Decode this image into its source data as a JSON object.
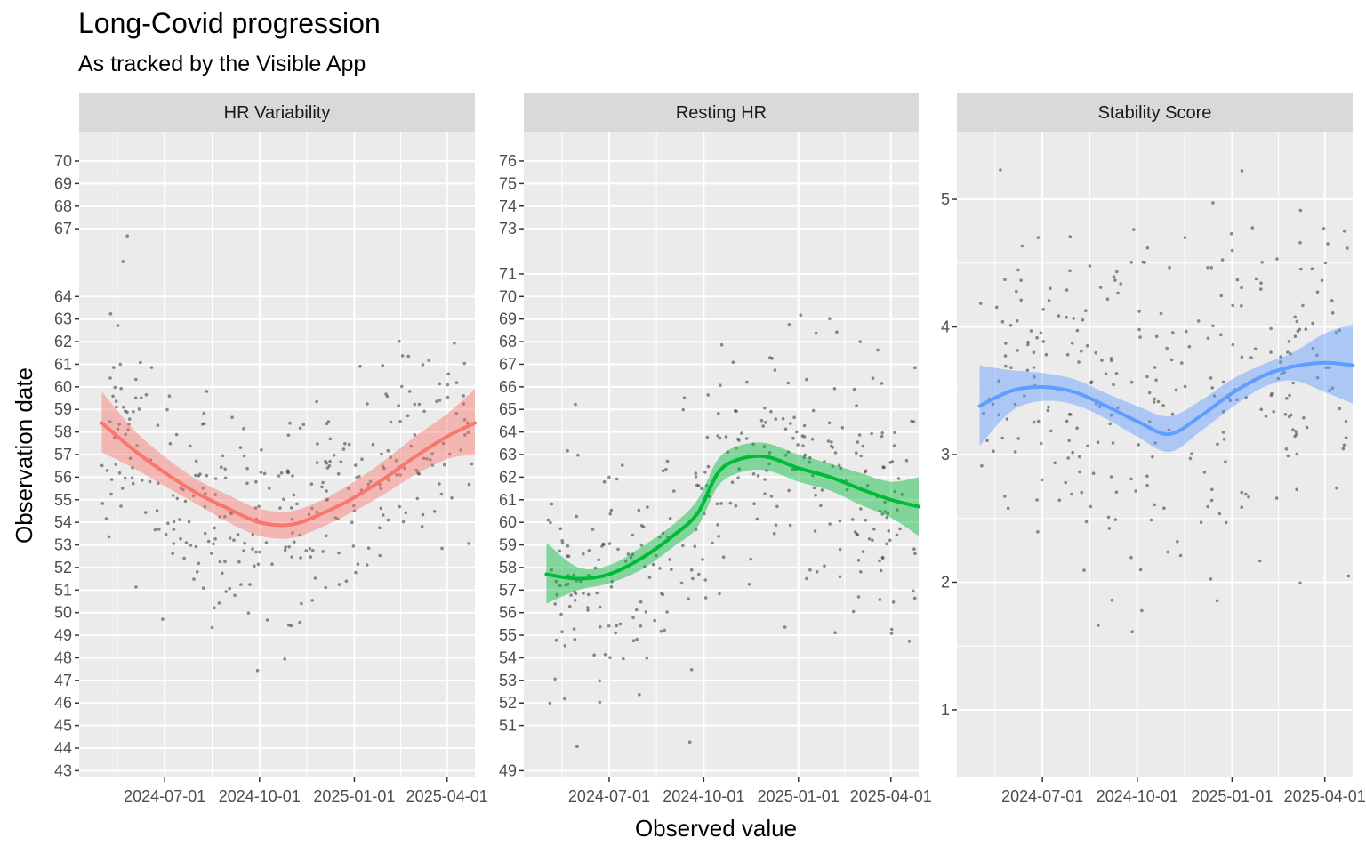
{
  "chart_data": {
    "type": "scatter",
    "title": "Long-Covid progression",
    "subtitle": "As tracked by the Visible App",
    "xlabel": "Observed value",
    "ylabel": "Observation date",
    "x_tick_labels": [
      "2024-07-01",
      "2024-10-01",
      "2025-01-01",
      "2025-04-01"
    ],
    "x_tick_dates": [
      "2024-07-01",
      "2024-10-01",
      "2025-01-01",
      "2025-04-01"
    ],
    "x_range": [
      "2024-04-09",
      "2025-04-28"
    ],
    "panels": [
      {
        "name": "HR Variability",
        "color": "#F8766D",
        "y_ticks": [
          "43",
          "44",
          "45",
          "46",
          "47",
          "48",
          "49",
          "50",
          "51",
          "52",
          "53",
          "54",
          "55",
          "56",
          "57",
          "58",
          "59",
          "60",
          "61",
          "62",
          "63",
          "64",
          "67",
          "68",
          "69",
          "70"
        ],
        "y_range": [
          42.7,
          71.3
        ],
        "smooth": {
          "x": [
            "2024-05-01",
            "2024-06-01",
            "2024-07-01",
            "2024-08-01",
            "2024-09-01",
            "2024-10-01",
            "2024-11-01",
            "2024-12-01",
            "2025-01-01",
            "2025-02-01",
            "2025-03-01",
            "2025-04-01",
            "2025-04-28"
          ],
          "y": [
            58.4,
            57.2,
            56.2,
            55.3,
            54.6,
            54.0,
            53.9,
            54.4,
            55.1,
            56.0,
            56.9,
            57.8,
            58.4
          ],
          "lower": [
            57.1,
            56.4,
            55.6,
            54.8,
            54.0,
            53.4,
            53.3,
            53.8,
            54.5,
            55.3,
            56.1,
            56.8,
            57.0
          ],
          "upper": [
            59.8,
            58.1,
            56.9,
            55.9,
            55.2,
            54.6,
            54.5,
            55.0,
            55.8,
            56.8,
            57.8,
            58.8,
            59.9
          ]
        },
        "points_seed": 11,
        "points_count": 330,
        "points_spread": 2.6
      },
      {
        "name": "Resting HR",
        "color": "#00BA38",
        "y_ticks": [
          "49",
          "51",
          "52",
          "53",
          "54",
          "55",
          "56",
          "57",
          "58",
          "59",
          "60",
          "61",
          "62",
          "63",
          "64",
          "65",
          "66",
          "67",
          "68",
          "69",
          "70",
          "71",
          "73",
          "74",
          "75",
          "76"
        ],
        "y_range": [
          48.7,
          77.3
        ],
        "smooth": {
          "x": [
            "2024-05-01",
            "2024-06-01",
            "2024-07-01",
            "2024-08-01",
            "2024-09-01",
            "2024-09-25",
            "2024-10-15",
            "2024-11-05",
            "2024-12-01",
            "2025-01-01",
            "2025-02-01",
            "2025-03-01",
            "2025-04-01",
            "2025-04-28"
          ],
          "y": [
            57.7,
            57.5,
            57.7,
            58.4,
            59.4,
            60.4,
            62.2,
            62.8,
            62.9,
            62.4,
            62.0,
            61.5,
            61.0,
            60.7
          ],
          "lower": [
            56.4,
            57.0,
            57.3,
            57.9,
            58.9,
            59.8,
            61.6,
            62.2,
            62.3,
            61.8,
            61.4,
            60.8,
            60.2,
            59.4
          ],
          "upper": [
            59.1,
            58.0,
            58.1,
            58.9,
            59.9,
            61.0,
            62.8,
            63.4,
            63.5,
            63.0,
            62.6,
            62.2,
            61.8,
            62.0
          ]
        },
        "points_seed": 23,
        "points_count": 330,
        "points_spread": 2.7
      },
      {
        "name": "Stability Score",
        "color": "#619CFF",
        "y_ticks": [
          "1",
          "2",
          "3",
          "4",
          "5"
        ],
        "y_range": [
          0.47,
          5.53
        ],
        "smooth": {
          "x": [
            "2024-05-01",
            "2024-06-01",
            "2024-07-01",
            "2024-08-01",
            "2024-09-01",
            "2024-10-01",
            "2024-11-01",
            "2024-12-01",
            "2025-01-01",
            "2025-02-01",
            "2025-03-01",
            "2025-04-01",
            "2025-04-28"
          ],
          "y": [
            3.38,
            3.5,
            3.53,
            3.49,
            3.38,
            3.26,
            3.16,
            3.3,
            3.48,
            3.62,
            3.69,
            3.72,
            3.7
          ],
          "lower": [
            3.07,
            3.34,
            3.42,
            3.39,
            3.28,
            3.14,
            3.02,
            3.18,
            3.37,
            3.53,
            3.58,
            3.49,
            3.4
          ],
          "upper": [
            3.7,
            3.66,
            3.64,
            3.59,
            3.48,
            3.38,
            3.3,
            3.42,
            3.59,
            3.71,
            3.8,
            3.95,
            4.02
          ]
        },
        "points_seed": 37,
        "points_count": 300,
        "points_spread": 0.7
      }
    ]
  },
  "colors": {
    "panel_bg": "#EBEBEB",
    "grid": "#FFFFFF",
    "strip_bg": "#D9D9D9",
    "point": "#333333"
  }
}
